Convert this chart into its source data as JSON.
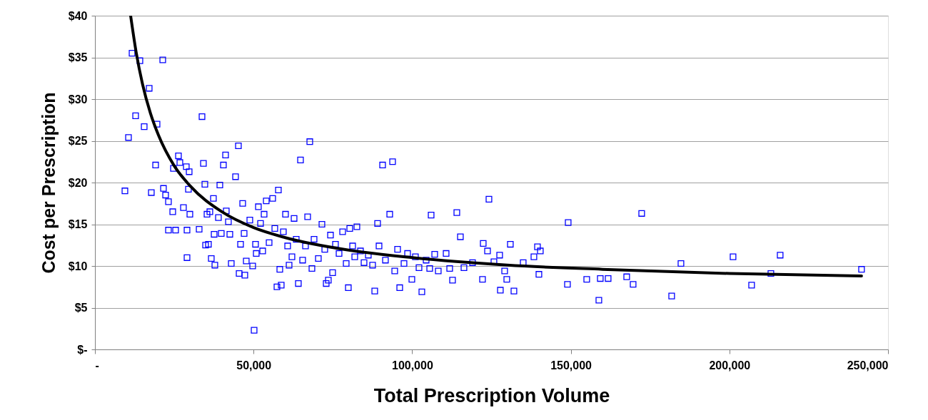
{
  "chart_data": {
    "type": "scatter",
    "xlabel": "Total Prescription Volume",
    "ylabel": "Cost per Prescription",
    "xlim": [
      0,
      250000
    ],
    "ylim": [
      0,
      40
    ],
    "xticks": [
      {
        "value": 0,
        "label": "-"
      },
      {
        "value": 50000,
        "label": "50,000"
      },
      {
        "value": 100000,
        "label": "100,000"
      },
      {
        "value": 150000,
        "label": "150,000"
      },
      {
        "value": 200000,
        "label": "200,000"
      },
      {
        "value": 250000,
        "label": "250,000"
      }
    ],
    "yticks": [
      {
        "value": 0,
        "label": "$-"
      },
      {
        "value": 5,
        "label": "$5"
      },
      {
        "value": 10,
        "label": "$10"
      },
      {
        "value": 15,
        "label": "$15"
      },
      {
        "value": 20,
        "label": "$20"
      },
      {
        "value": 25,
        "label": "$25"
      },
      {
        "value": 30,
        "label": "$30"
      },
      {
        "value": 35,
        "label": "$35"
      },
      {
        "value": 40,
        "label": "$40"
      }
    ],
    "grid": "y",
    "series": [
      {
        "marker": "square",
        "color": "#0000ff",
        "x": [
          9450,
          10575,
          11700,
          12825,
          14175,
          15525,
          17100,
          17775,
          19125,
          19575,
          21375,
          21600,
          22275,
          23175,
          23175,
          24525,
          24750,
          25425,
          26325,
          26775,
          27900,
          28800,
          29025,
          29025,
          29475,
          29700,
          29925,
          32850,
          33750,
          34200,
          34650,
          34875,
          35325,
          35775,
          36225,
          36675,
          37350,
          37575,
          37800,
          38925,
          39375,
          39825,
          40500,
          41175,
          41400,
          42075,
          42525,
          42975,
          44325,
          45225,
          45450,
          45900,
          46575,
          47025,
          47250,
          47700,
          48825,
          49725,
          50175,
          50625,
          50850,
          51525,
          52200,
          52875,
          53325,
          54000,
          54900,
          56025,
          56700,
          57375,
          57825,
          58275,
          58725,
          59400,
          60075,
          60750,
          61200,
          62100,
          62775,
          63450,
          64125,
          64800,
          65475,
          66375,
          67050,
          67725,
          68400,
          69075,
          70425,
          71550,
          72450,
          72900,
          73575,
          74250,
          74925,
          75825,
          76950,
          78075,
          79200,
          79875,
          80325,
          81225,
          81900,
          82575,
          83700,
          84825,
          86175,
          87525,
          88200,
          89100,
          89550,
          90675,
          91575,
          92925,
          93825,
          94500,
          95400,
          96075,
          97425,
          98550,
          99900,
          101025,
          102150,
          103050,
          104400,
          105525,
          105975,
          107100,
          108225,
          110700,
          111825,
          112725,
          114075,
          115200,
          116325,
          119025,
          122175,
          122400,
          123750,
          124200,
          125775,
          127575,
          127800,
          129150,
          129825,
          130950,
          132075,
          135000,
          138375,
          139500,
          139950,
          140400,
          148950,
          149175,
          155025,
          158850,
          159300,
          161775,
          167625,
          169650,
          172350,
          181800,
          184725,
          201150,
          207000,
          213075,
          216000,
          241650
        ],
        "values": [
          19.0,
          25.4,
          35.5,
          28.0,
          34.6,
          26.7,
          31.3,
          18.8,
          22.1,
          27.0,
          34.7,
          19.3,
          18.5,
          17.7,
          14.3,
          16.5,
          21.7,
          14.3,
          23.2,
          22.4,
          17.0,
          21.9,
          11.0,
          14.3,
          19.2,
          21.3,
          16.2,
          14.4,
          27.9,
          22.3,
          19.8,
          12.5,
          16.2,
          12.6,
          16.5,
          10.9,
          18.1,
          13.8,
          10.1,
          15.8,
          19.7,
          13.9,
          22.1,
          23.3,
          16.6,
          15.3,
          13.8,
          10.3,
          20.7,
          24.4,
          9.1,
          12.6,
          17.5,
          13.9,
          8.9,
          10.6,
          15.5,
          10.0,
          2.3,
          12.6,
          11.5,
          17.1,
          15.1,
          11.8,
          16.2,
          17.8,
          12.8,
          18.1,
          14.5,
          7.5,
          19.1,
          9.6,
          7.7,
          14.1,
          16.2,
          12.4,
          10.1,
          11.1,
          15.7,
          13.2,
          7.9,
          22.7,
          10.7,
          12.4,
          15.9,
          24.9,
          9.7,
          13.2,
          10.9,
          15.0,
          12.0,
          7.9,
          8.3,
          13.7,
          9.2,
          12.6,
          11.5,
          14.1,
          10.3,
          7.4,
          14.5,
          12.4,
          11.1,
          14.7,
          11.8,
          10.4,
          11.3,
          10.1,
          7.0,
          15.1,
          12.4,
          22.1,
          10.7,
          16.2,
          22.5,
          9.4,
          12.0,
          7.4,
          10.3,
          11.5,
          8.4,
          11.1,
          9.8,
          6.9,
          10.7,
          9.7,
          16.1,
          11.4,
          9.4,
          11.5,
          9.7,
          8.3,
          16.4,
          13.5,
          9.8,
          10.4,
          8.4,
          12.7,
          11.8,
          18.0,
          10.5,
          11.3,
          7.1,
          9.4,
          8.4,
          12.6,
          7.0,
          10.4,
          11.1,
          12.3,
          9.0,
          11.8,
          7.8,
          15.2,
          8.4,
          5.9,
          8.5,
          8.5,
          8.7,
          7.8,
          16.3,
          6.4,
          10.3,
          11.1,
          7.7,
          9.1,
          11.3,
          9.6
        ]
      },
      {
        "type": "line",
        "color": "#000000",
        "x": [
          11250,
          13000,
          15000,
          17500,
          20000,
          25000,
          30000,
          40000,
          50000,
          60000,
          80000,
          100000,
          130000,
          160000,
          200000,
          241650
        ],
        "values": [
          40.0,
          35.6,
          31.8,
          28.3,
          25.7,
          22.0,
          19.6,
          16.5,
          14.6,
          13.4,
          11.9,
          11.0,
          10.1,
          9.6,
          9.1,
          8.8
        ]
      }
    ]
  }
}
